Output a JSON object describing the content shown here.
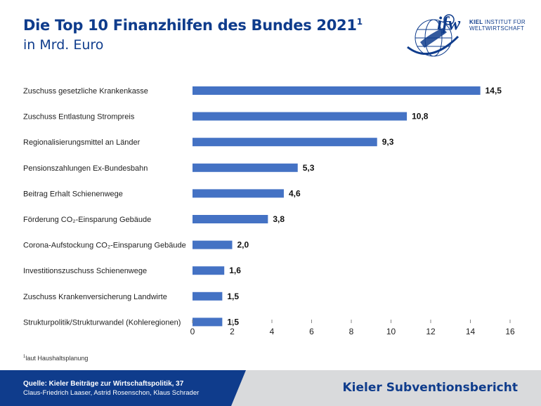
{
  "header": {
    "title": "Die Top 10 Finanzhilfen des Bundes 2021",
    "title_sup": "1",
    "subtitle": "in Mrd. Euro"
  },
  "logo": {
    "mark": "ifw",
    "line1": "KIEL",
    "line1b": "INSTITUT FÜR",
    "line2": "WELTWIRTSCHAFT"
  },
  "chart_data": {
    "type": "bar",
    "orientation": "horizontal",
    "categories": [
      "Zuschuss gesetzliche Krankenkasse",
      "Zuschuss Entlastung Strompreis",
      "Regionalisierungsmittel an Länder",
      "Pensionszahlungen Ex-Bundesbahn",
      "Beitrag Erhalt Schienenwege",
      "Förderung CO₂-Einsparung Gebäude",
      "Corona-Aufstockung CO₂-Einsparung Gebäude",
      "Investitionszuschuss Schienenwege",
      "Zuschuss Krankenversicherung Landwirte",
      "Strukturpolitik/Strukturwandel (Kohleregionen)"
    ],
    "values": [
      14.5,
      10.8,
      9.3,
      5.3,
      4.6,
      3.8,
      2.0,
      1.6,
      1.5,
      1.5
    ],
    "value_labels": [
      "14,5",
      "10,8",
      "9,3",
      "5,3",
      "4,6",
      "3,8",
      "2,0",
      "1,6",
      "1,5",
      "1,5"
    ],
    "x_ticks": [
      "0",
      "2",
      "4",
      "6",
      "8",
      "10",
      "12",
      "14",
      "16"
    ],
    "xlim": [
      0,
      16
    ],
    "bar_color": "#4472c4",
    "grid": false
  },
  "footnote": {
    "mark": "1",
    "text": "laut Haushaltsplanung"
  },
  "footer": {
    "source_line": "Quelle: Kieler Beiträge zur Wirtschaftspolitik, 37",
    "authors": "Claus-Friedrich Laaser, Astrid Rosenschon, Klaus Schrader",
    "brand": "Kieler Subventionsbericht"
  },
  "colors": {
    "brand_blue": "#0f3c8c",
    "footer_gray": "#d9dadc"
  }
}
